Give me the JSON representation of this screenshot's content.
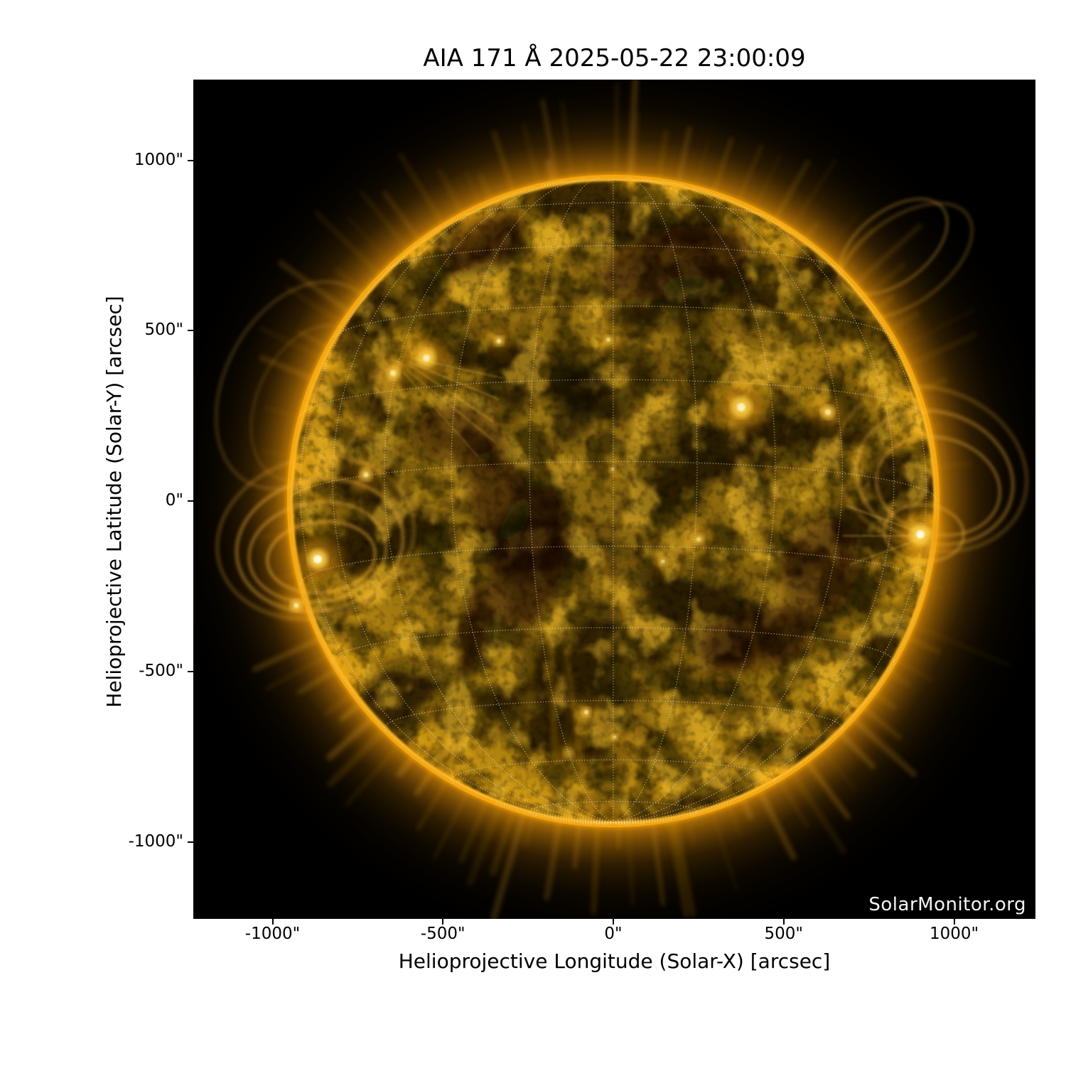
{
  "title": "AIA 171 Å 2025-05-22 23:00:09",
  "watermark": "SolarMonitor.org",
  "axes": {
    "x": {
      "label": "Helioprojective Longitude (Solar-X) [arcsec]",
      "ticks": [
        {
          "value": -1000,
          "label": "-1000\""
        },
        {
          "value": -500,
          "label": "-500\""
        },
        {
          "value": 0,
          "label": "0\""
        },
        {
          "value": 500,
          "label": "500\""
        },
        {
          "value": 1000,
          "label": "1000\""
        }
      ]
    },
    "y": {
      "label": "Helioprojective Latitude (Solar-Y) [arcsec]",
      "ticks": [
        {
          "value": 1000,
          "label": "1000\""
        },
        {
          "value": 500,
          "label": "500\""
        },
        {
          "value": 0,
          "label": "0\""
        },
        {
          "value": -500,
          "label": "-500\""
        },
        {
          "value": -1000,
          "label": "-1000\""
        }
      ]
    }
  },
  "colors": {
    "figure_background": "#ffffff",
    "plot_background": "#000000",
    "text": "#000000",
    "watermark_text": "#f4f4f4",
    "sun_bright": "#ffc62e",
    "sun_rim": "#f7a50c",
    "sun_mid": "#9c7410",
    "sun_dark": "#1c1403",
    "corona_glow": "#c67e06",
    "grid_dots": "#e9dfc8"
  },
  "chart_data": {
    "type": "heatmap",
    "title": "AIA 171 Å 2025-05-22 23:00:09",
    "instrument": "AIA",
    "wavelength": "171 Å",
    "observation_time": "2025-05-22 23:00:09",
    "xlabel": "Helioprojective Longitude (Solar-X) [arcsec]",
    "ylabel": "Helioprojective Latitude (Solar-Y) [arcsec]",
    "xlim": [
      -1230,
      1230
    ],
    "ylim": [
      -1230,
      1230
    ],
    "x_ticks": [
      -1000,
      -500,
      0,
      500,
      1000
    ],
    "y_ticks": [
      1000,
      500,
      0,
      -500,
      -1000
    ],
    "grid": "heliographic graticule, 15 degree spacing, dotted, drawn on solar disk",
    "solar_disk": {
      "center_arcsec": [
        0,
        0
      ],
      "radius_arcsec": 960
    },
    "legend_position": "none",
    "credit": "SolarMonitor.org"
  }
}
